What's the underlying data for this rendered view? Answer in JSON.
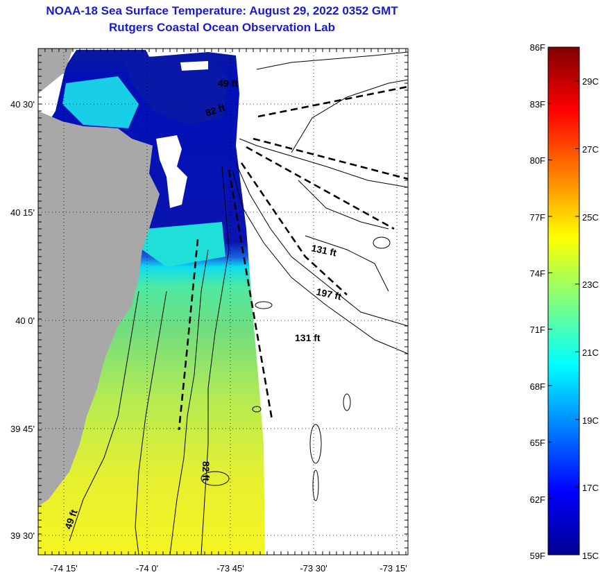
{
  "title": {
    "line1": "NOAA-18 Sea Surface Temperature:  August 29, 2022 0352 GMT",
    "line2": "Rutgers Coastal Ocean Observation Lab"
  },
  "map": {
    "y_labels": [
      "40 30'",
      "40 15'",
      "40 0'",
      "39 45'",
      "39 30'"
    ],
    "y_values": [
      40.5,
      40.25,
      40.0,
      39.75,
      39.5
    ],
    "x_labels": [
      "-74 15'",
      "-74 0'",
      "-73 45'",
      "-73 30'",
      "-73 15'"
    ],
    "x_values": [
      -74.25,
      -74.0,
      -73.75,
      -73.5,
      -73.25
    ],
    "contour_labels": [
      "49 ft",
      "82 ft",
      "131 ft",
      "197 ft",
      "131 ft",
      "82 ft",
      "49 ft"
    ],
    "colors": {
      "land": "#a8a8a8",
      "water_nodata": "#ffffff",
      "contour": "#000000"
    }
  },
  "colorbar": {
    "f_labels": [
      "86F",
      "83F",
      "80F",
      "77F",
      "74F",
      "71F",
      "68F",
      "65F",
      "62F",
      "59F"
    ],
    "c_labels": [
      "29C",
      "27C",
      "25C",
      "23C",
      "21C",
      "19C",
      "17C",
      "15C"
    ],
    "f_values": [
      86,
      83,
      80,
      77,
      74,
      71,
      68,
      65,
      62,
      59
    ],
    "c_values": [
      29,
      27,
      25,
      23,
      21,
      19,
      17,
      15
    ],
    "range_f": [
      59,
      86
    ],
    "colormap": "jet"
  }
}
